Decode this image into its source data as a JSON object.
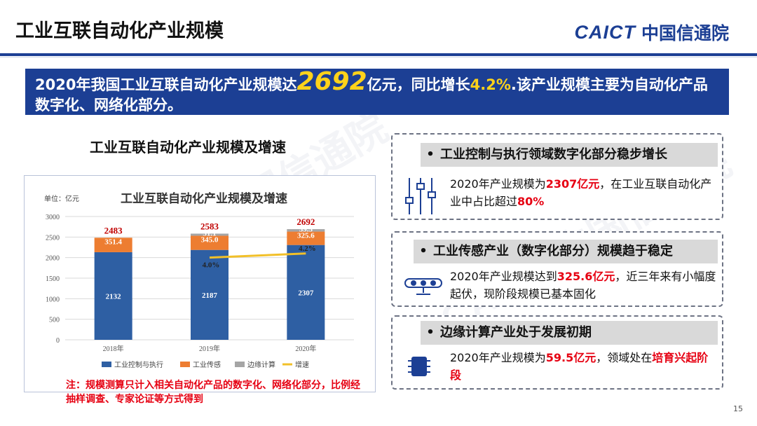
{
  "header": {
    "title": "工业互联自动化产业规模",
    "logo_en": "CAICT",
    "logo_cn": "中国信通院"
  },
  "banner": {
    "part1": "2020年我国工业互联自动化产业规模达",
    "big_value": "2692",
    "part2": "亿元，同比增长",
    "growth": "4.2%",
    "part3": ".该产业规模主要为自动化产品数字化、网络化部分。"
  },
  "chart_heading": "工业互联自动化产业规模及增速",
  "chart_data": {
    "type": "bar",
    "stacked": true,
    "title": "工业互联自动化产业规模及增速",
    "unit_label": "单位：亿元",
    "categories": [
      "2018年",
      "2019年",
      "2020年"
    ],
    "ylim": [
      0,
      3000
    ],
    "yticks": [
      0,
      500,
      1000,
      1500,
      2000,
      2500,
      3000
    ],
    "series": [
      {
        "name": "工业控制与执行",
        "values": [
          2132,
          2187,
          2307
        ],
        "labels": [
          "2132",
          "2187",
          "2307"
        ],
        "color": "#2e5fa3"
      },
      {
        "name": "工业传感",
        "values": [
          351.4,
          345.0,
          325.6
        ],
        "labels": [
          "351.4",
          "345.0",
          "325.6"
        ],
        "color": "#ed7d31"
      },
      {
        "name": "边缘计算",
        "values": [
          0,
          51.1,
          59.5
        ],
        "labels": [
          "",
          "51.1",
          "59.5"
        ],
        "color": "#a5a5a5"
      }
    ],
    "totals": [
      "2483",
      "2583",
      "2692"
    ],
    "growth_line": {
      "name": "增速",
      "categories": [
        "2019年",
        "2020年"
      ],
      "values": [
        4.0,
        4.2
      ],
      "labels": [
        "4.0%",
        "4.2%"
      ],
      "color": "#f2c029"
    },
    "legend": [
      "工业控制与执行",
      "工业传感",
      "边缘计算",
      "增速"
    ],
    "legend_position": "bottom",
    "grid": true
  },
  "note": "注：规模测算只计入相关自动化产品的数字化、网络化部分，比例经抽样调查、专家论证等方式得到",
  "cards": [
    {
      "bullet": "•",
      "title": "工业控制与执行领域数字化部分稳步增长",
      "t1": "2020年产业规模为",
      "h1": "2307亿元",
      "t2": "，在工业互联自动化产业中占比超过",
      "h2": "80%",
      "t3": "",
      "icon": "sliders-icon"
    },
    {
      "bullet": "•",
      "title": "工业传感产业（数字化部分）规模趋于稳定",
      "t1": "2020年产业规模达到",
      "h1": "325.6亿元",
      "t2": "，近三年来有小幅度起伏，现阶段规模已基本固化",
      "h2": "",
      "t3": "",
      "icon": "sensor-icon"
    },
    {
      "bullet": "•",
      "title": "边缘计算产业处于发展初期",
      "t1": "2020年产业规模为",
      "h1": "59.5亿元",
      "t2": "，领域处在",
      "h2": "培育兴起阶段",
      "t3": "",
      "icon": "chip-icon"
    }
  ],
  "page_number": "15",
  "watermark": "CAICT 中国信通院"
}
